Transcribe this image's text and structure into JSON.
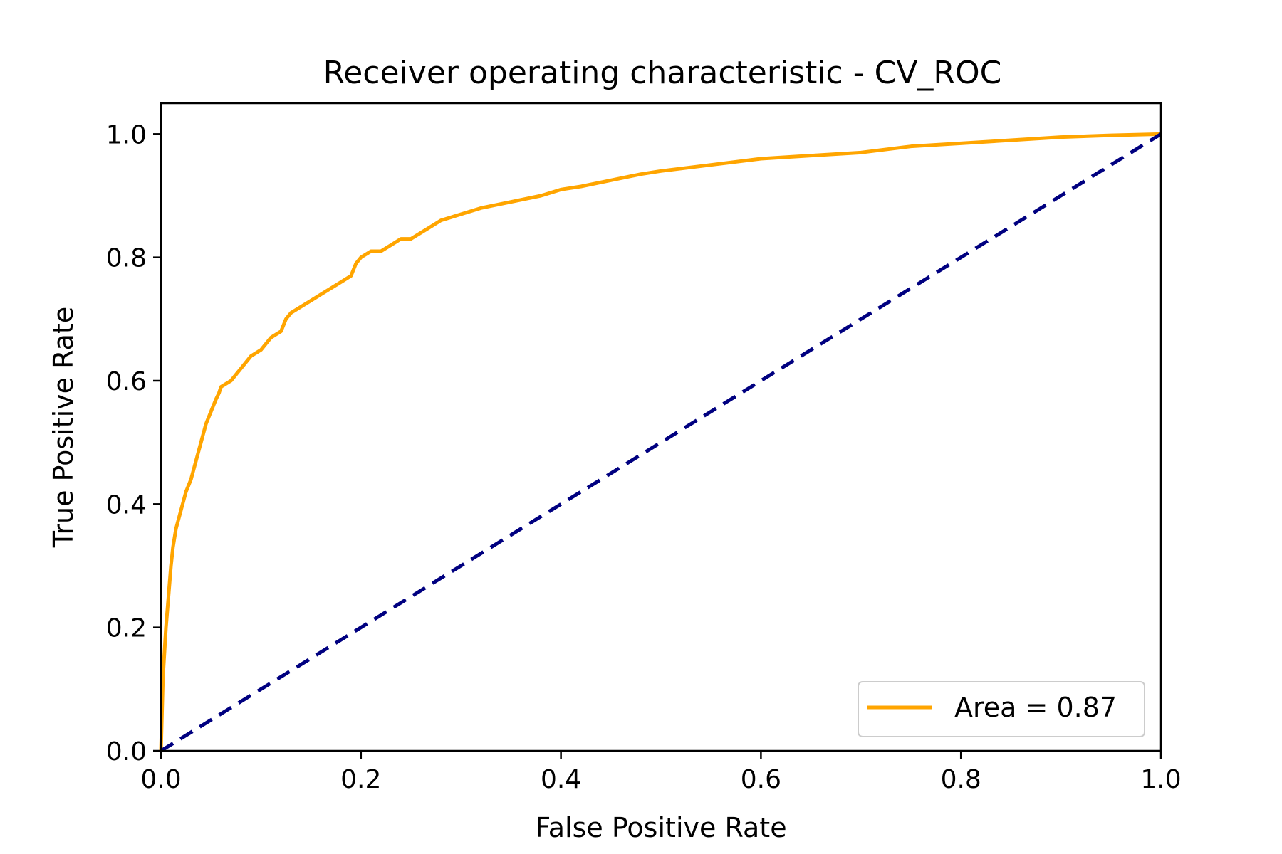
{
  "chart_data": {
    "type": "line",
    "title": "Receiver operating characteristic - CV_ROC",
    "xlabel": "False Positive Rate",
    "ylabel": "True Positive Rate",
    "xlim": [
      0.0,
      1.0
    ],
    "ylim": [
      0.0,
      1.05
    ],
    "grid": false,
    "legend_position": "lower-right",
    "x_ticks": [
      "0.0",
      "0.2",
      "0.4",
      "0.6",
      "0.8",
      "1.0"
    ],
    "y_ticks": [
      "0.0",
      "0.2",
      "0.4",
      "0.6",
      "0.8",
      "1.0"
    ],
    "series": [
      {
        "name": "Area = 0.87",
        "color": "#ffa500",
        "style": "solid",
        "x": [
          0.0,
          0.002,
          0.005,
          0.008,
          0.01,
          0.012,
          0.015,
          0.02,
          0.025,
          0.03,
          0.035,
          0.04,
          0.045,
          0.05,
          0.055,
          0.058,
          0.06,
          0.07,
          0.08,
          0.09,
          0.1,
          0.11,
          0.12,
          0.125,
          0.13,
          0.14,
          0.15,
          0.16,
          0.17,
          0.18,
          0.19,
          0.195,
          0.2,
          0.21,
          0.22,
          0.23,
          0.24,
          0.25,
          0.26,
          0.27,
          0.28,
          0.3,
          0.32,
          0.35,
          0.38,
          0.4,
          0.42,
          0.45,
          0.48,
          0.5,
          0.55,
          0.6,
          0.65,
          0.7,
          0.75,
          0.8,
          0.85,
          0.9,
          0.95,
          1.0
        ],
        "y": [
          0.0,
          0.12,
          0.2,
          0.26,
          0.3,
          0.33,
          0.36,
          0.39,
          0.42,
          0.44,
          0.47,
          0.5,
          0.53,
          0.55,
          0.57,
          0.58,
          0.59,
          0.6,
          0.62,
          0.64,
          0.65,
          0.67,
          0.68,
          0.7,
          0.71,
          0.72,
          0.73,
          0.74,
          0.75,
          0.76,
          0.77,
          0.79,
          0.8,
          0.81,
          0.81,
          0.82,
          0.83,
          0.83,
          0.84,
          0.85,
          0.86,
          0.87,
          0.88,
          0.89,
          0.9,
          0.91,
          0.915,
          0.925,
          0.935,
          0.94,
          0.95,
          0.96,
          0.965,
          0.97,
          0.98,
          0.985,
          0.99,
          0.995,
          0.998,
          1.0
        ]
      },
      {
        "name": "",
        "color": "#000080",
        "style": "dashed",
        "x": [
          0.0,
          1.0
        ],
        "y": [
          0.0,
          1.0
        ]
      }
    ],
    "legend": [
      {
        "label": "Area = 0.87",
        "color": "#ffa500"
      }
    ]
  }
}
